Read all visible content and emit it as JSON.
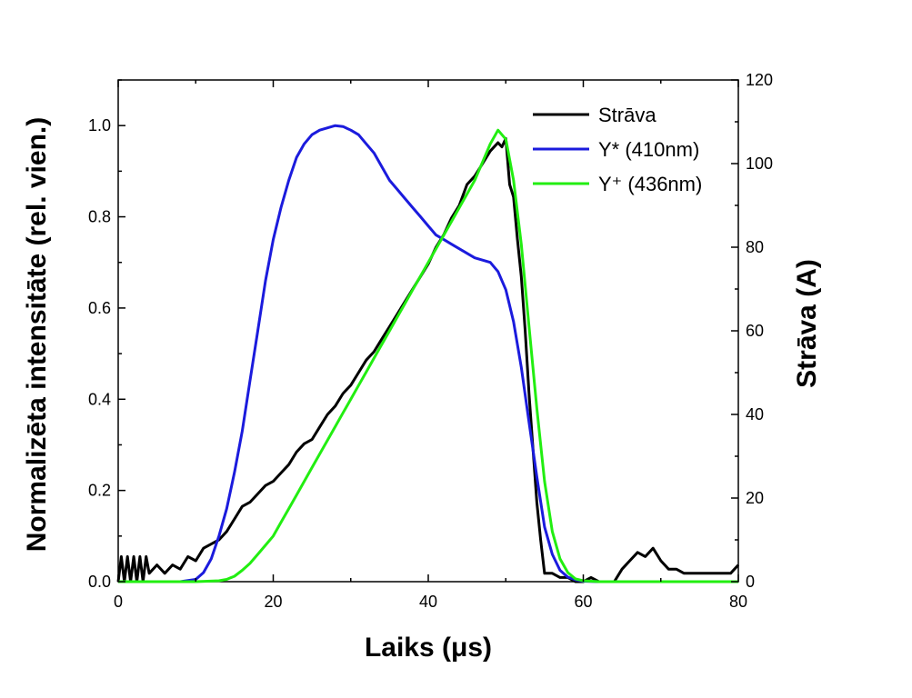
{
  "chart_data": {
    "type": "line",
    "xlabel": "Laiks (μs)",
    "ylabel_left": "Normalizēta intensitāte (rel. vien.)",
    "ylabel_right": "Strāva (A)",
    "xlim": [
      0,
      80
    ],
    "ylim_left": [
      0,
      1.1
    ],
    "ylim_right": [
      0,
      120
    ],
    "x_ticks": [
      0,
      20,
      40,
      60,
      80
    ],
    "y_ticks_left": [
      0.0,
      0.2,
      0.4,
      0.6,
      0.8,
      1.0
    ],
    "y_ticks_right": [
      0,
      20,
      40,
      60,
      80,
      100,
      120
    ],
    "legend_position": "top-right",
    "grid": false,
    "series": [
      {
        "name": "Strāva",
        "axis": "right",
        "color": "#000000",
        "x": [
          0,
          0.4,
          0.8,
          1.2,
          1.6,
          2.0,
          2.4,
          2.8,
          3.2,
          3.6,
          4.0,
          5,
          6,
          7,
          8,
          9,
          10,
          11,
          12,
          13,
          14,
          15,
          16,
          17,
          18,
          19,
          20,
          21,
          22,
          23,
          24,
          25,
          26,
          27,
          28,
          29,
          30,
          31,
          32,
          33,
          34,
          35,
          36,
          37,
          38,
          39,
          40,
          41,
          42,
          43,
          44,
          45,
          46,
          47,
          48,
          49,
          49.5,
          50,
          50.5,
          51,
          51.5,
          52,
          52.5,
          53,
          53.5,
          54,
          54.5,
          55,
          56,
          57,
          58,
          59,
          60,
          61,
          62,
          63,
          64,
          65,
          66,
          67,
          68,
          69,
          70,
          71,
          72,
          73,
          74,
          75,
          76,
          77,
          78,
          79,
          80
        ],
        "y": [
          0,
          6,
          0,
          6,
          0,
          6,
          0,
          6,
          0,
          6,
          2,
          4,
          2,
          4,
          3,
          6,
          5,
          8,
          9,
          10,
          12,
          15,
          18,
          19,
          21,
          23,
          24,
          26,
          28,
          31,
          33,
          34,
          37,
          40,
          42,
          45,
          47,
          50,
          53,
          55,
          58,
          61,
          64,
          67,
          70,
          73,
          76,
          80,
          83,
          87,
          90,
          95,
          97,
          100,
          103,
          105,
          104,
          106,
          95,
          92,
          82,
          73,
          60,
          45,
          32,
          19,
          10,
          2,
          2,
          1,
          1,
          0,
          0,
          1,
          0,
          0,
          0,
          3,
          5,
          7,
          6,
          8,
          5,
          3,
          3,
          2,
          2,
          2,
          2,
          2,
          2,
          2,
          4
        ]
      },
      {
        "name": "Y* (410nm)",
        "axis": "left",
        "color": "#1b1bdd",
        "x": [
          0,
          5,
          8,
          10,
          11,
          12,
          13,
          14,
          15,
          16,
          17,
          18,
          19,
          20,
          21,
          22,
          23,
          24,
          25,
          26,
          27,
          28,
          29,
          30,
          31,
          32,
          33,
          34,
          35,
          36,
          37,
          38,
          39,
          40,
          41,
          42,
          43,
          44,
          45,
          46,
          47,
          48,
          49,
          50,
          51,
          52,
          53,
          54,
          55,
          56,
          57,
          58,
          59,
          60,
          62,
          65,
          70,
          80
        ],
        "y": [
          0,
          0,
          0,
          0.005,
          0.02,
          0.05,
          0.1,
          0.16,
          0.24,
          0.33,
          0.44,
          0.55,
          0.66,
          0.75,
          0.82,
          0.88,
          0.93,
          0.96,
          0.98,
          0.99,
          0.995,
          1.0,
          0.998,
          0.99,
          0.98,
          0.96,
          0.94,
          0.91,
          0.88,
          0.86,
          0.84,
          0.82,
          0.8,
          0.78,
          0.76,
          0.75,
          0.74,
          0.73,
          0.72,
          0.71,
          0.705,
          0.7,
          0.68,
          0.64,
          0.57,
          0.47,
          0.35,
          0.23,
          0.12,
          0.06,
          0.025,
          0.01,
          0.004,
          0.001,
          0,
          0,
          0,
          0
        ]
      },
      {
        "name": "Y⁺ (436nm)",
        "axis": "left",
        "color": "#22ee11",
        "x": [
          0,
          10,
          13,
          14,
          15,
          16,
          17,
          18,
          19,
          20,
          21,
          22,
          23,
          24,
          25,
          26,
          27,
          28,
          29,
          30,
          31,
          32,
          33,
          34,
          35,
          36,
          37,
          38,
          39,
          40,
          41,
          42,
          43,
          44,
          45,
          46,
          47,
          48,
          49,
          50,
          51,
          52,
          53,
          54,
          55,
          56,
          57,
          58,
          59,
          60,
          62,
          65,
          70,
          80
        ],
        "y": [
          0,
          0,
          0.002,
          0.005,
          0.012,
          0.025,
          0.04,
          0.06,
          0.08,
          0.1,
          0.13,
          0.16,
          0.19,
          0.22,
          0.25,
          0.28,
          0.31,
          0.34,
          0.37,
          0.4,
          0.43,
          0.46,
          0.49,
          0.52,
          0.55,
          0.58,
          0.61,
          0.64,
          0.67,
          0.7,
          0.73,
          0.76,
          0.79,
          0.82,
          0.85,
          0.88,
          0.92,
          0.96,
          0.99,
          0.97,
          0.88,
          0.74,
          0.56,
          0.38,
          0.22,
          0.11,
          0.05,
          0.02,
          0.006,
          0.002,
          0,
          0,
          0,
          0
        ]
      }
    ]
  }
}
